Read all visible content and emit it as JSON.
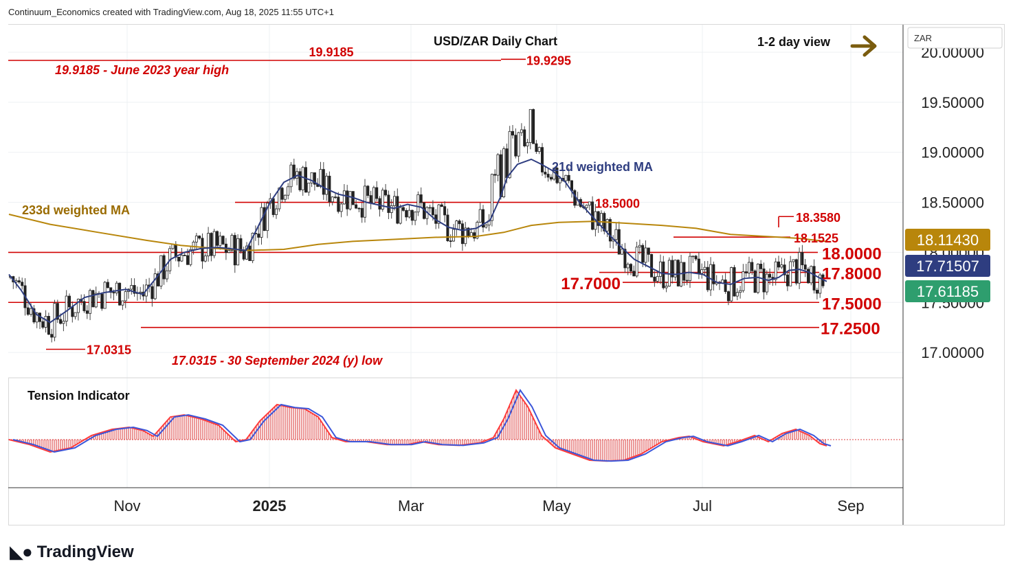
{
  "header": {
    "created_by": "Continuum_Economics created with TradingView.com, Aug 18, 2025 11:55 UTC+1"
  },
  "brand": {
    "logo_icon": "tradingview-logo-icon",
    "name": "TradingView"
  },
  "chart_data": {
    "type": "candlestick",
    "title": "USD/ZAR Daily Chart",
    "view_label": "1-2 day view",
    "view_arrow_icon": "arrow-right-icon",
    "currency_label": "ZAR",
    "y_axis": {
      "ylim": [
        16.78,
        20.15
      ],
      "ticks": [
        "17.00000",
        "17.50000",
        "18.00000",
        "18.50000",
        "19.00000",
        "19.50000",
        "20.00000"
      ]
    },
    "x_axis": {
      "ticks": [
        "Nov",
        "2025",
        "Mar",
        "May",
        "Jul",
        "Sep"
      ]
    },
    "price_badges": [
      {
        "label": "18.11430",
        "color": "#b8860b"
      },
      {
        "label": "17.71507",
        "color": "#2e3d80"
      },
      {
        "label": "17.61185",
        "color": "#2e9e6e"
      }
    ],
    "support_resistance": [
      {
        "value": 19.9295,
        "label": "19.9295"
      },
      {
        "value": 19.9185,
        "label": "19.9185"
      },
      {
        "value": 18.5,
        "label": "18.5000"
      },
      {
        "value": 18.358,
        "label": "18.3580"
      },
      {
        "value": 18.1525,
        "label": "18.1525"
      },
      {
        "value": 18.0,
        "label": "18.0000"
      },
      {
        "value": 17.8,
        "label": "17.8000"
      },
      {
        "value": 17.7,
        "label": "17.7000"
      },
      {
        "value": 17.5,
        "label": "17.5000"
      },
      {
        "value": 17.25,
        "label": "17.2500"
      },
      {
        "value": 17.0315,
        "label": "17.0315"
      }
    ],
    "annotations": [
      "19.9185 - June 2023 year high",
      "17.0315 - 30 September 2024 (y) low"
    ],
    "series": [
      {
        "name": "21d weighted MA",
        "color": "#2e3d80",
        "points": [
          [
            0,
            17.78
          ],
          [
            18,
            17.62
          ],
          [
            40,
            17.38
          ],
          [
            60,
            17.3
          ],
          [
            85,
            17.42
          ],
          [
            110,
            17.55
          ],
          [
            140,
            17.6
          ],
          [
            170,
            17.63
          ],
          [
            195,
            17.58
          ],
          [
            215,
            17.75
          ],
          [
            235,
            17.93
          ],
          [
            255,
            18.0
          ],
          [
            280,
            18.04
          ],
          [
            305,
            18.05
          ],
          [
            330,
            18.03
          ],
          [
            345,
            18.02
          ],
          [
            362,
            18.25
          ],
          [
            380,
            18.5
          ],
          [
            400,
            18.7
          ],
          [
            420,
            18.77
          ],
          [
            440,
            18.72
          ],
          [
            460,
            18.64
          ],
          [
            480,
            18.58
          ],
          [
            500,
            18.55
          ],
          [
            520,
            18.5
          ],
          [
            540,
            18.47
          ],
          [
            560,
            18.44
          ],
          [
            580,
            18.48
          ],
          [
            600,
            18.45
          ],
          [
            620,
            18.33
          ],
          [
            640,
            18.25
          ],
          [
            660,
            18.22
          ],
          [
            680,
            18.24
          ],
          [
            700,
            18.32
          ],
          [
            715,
            18.55
          ],
          [
            725,
            18.75
          ],
          [
            740,
            18.88
          ],
          [
            760,
            18.93
          ],
          [
            775,
            18.88
          ],
          [
            790,
            18.82
          ],
          [
            810,
            18.7
          ],
          [
            830,
            18.5
          ],
          [
            850,
            18.35
          ],
          [
            870,
            18.2
          ],
          [
            890,
            18.06
          ],
          [
            910,
            17.93
          ],
          [
            930,
            17.86
          ],
          [
            950,
            17.79
          ],
          [
            970,
            17.78
          ],
          [
            990,
            17.8
          ],
          [
            1010,
            17.78
          ],
          [
            1030,
            17.7
          ],
          [
            1050,
            17.68
          ],
          [
            1070,
            17.74
          ],
          [
            1090,
            17.75
          ],
          [
            1105,
            17.72
          ],
          [
            1120,
            17.75
          ],
          [
            1135,
            17.82
          ],
          [
            1150,
            17.83
          ],
          [
            1165,
            17.8
          ],
          [
            1178,
            17.75
          ],
          [
            1190,
            17.71
          ]
        ]
      },
      {
        "name": "233d weighted MA",
        "color": "#b8860b",
        "points": [
          [
            0,
            18.38
          ],
          [
            60,
            18.28
          ],
          [
            130,
            18.2
          ],
          [
            200,
            18.12
          ],
          [
            250,
            18.07
          ],
          [
            300,
            18.04
          ],
          [
            350,
            18.02
          ],
          [
            400,
            18.03
          ],
          [
            450,
            18.08
          ],
          [
            500,
            18.11
          ],
          [
            560,
            18.13
          ],
          [
            620,
            18.15
          ],
          [
            680,
            18.16
          ],
          [
            720,
            18.2
          ],
          [
            760,
            18.27
          ],
          [
            800,
            18.3
          ],
          [
            850,
            18.31
          ],
          [
            900,
            18.29
          ],
          [
            950,
            18.27
          ],
          [
            1000,
            18.24
          ],
          [
            1050,
            18.18
          ],
          [
            1100,
            18.16
          ],
          [
            1150,
            18.14
          ],
          [
            1188,
            18.11
          ]
        ]
      },
      {
        "name": "Tension Indicator",
        "points": [
          [
            0,
            0.0
          ],
          [
            30,
            -0.12
          ],
          [
            60,
            -0.3
          ],
          [
            90,
            -0.2
          ],
          [
            120,
            0.1
          ],
          [
            150,
            0.25
          ],
          [
            175,
            0.3
          ],
          [
            195,
            0.22
          ],
          [
            210,
            0.08
          ],
          [
            235,
            0.55
          ],
          [
            255,
            0.6
          ],
          [
            280,
            0.5
          ],
          [
            305,
            0.35
          ],
          [
            330,
            -0.05
          ],
          [
            345,
            0.0
          ],
          [
            365,
            0.45
          ],
          [
            390,
            0.85
          ],
          [
            410,
            0.78
          ],
          [
            430,
            0.75
          ],
          [
            450,
            0.55
          ],
          [
            470,
            0.05
          ],
          [
            490,
            -0.05
          ],
          [
            520,
            -0.05
          ],
          [
            550,
            -0.12
          ],
          [
            580,
            -0.12
          ],
          [
            600,
            -0.05
          ],
          [
            625,
            -0.12
          ],
          [
            655,
            -0.14
          ],
          [
            685,
            -0.08
          ],
          [
            705,
            0.05
          ],
          [
            720,
            0.5
          ],
          [
            738,
            1.2
          ],
          [
            755,
            0.8
          ],
          [
            775,
            0.1
          ],
          [
            795,
            -0.2
          ],
          [
            820,
            -0.35
          ],
          [
            845,
            -0.5
          ],
          [
            870,
            -0.52
          ],
          [
            895,
            -0.5
          ],
          [
            920,
            -0.35
          ],
          [
            950,
            -0.05
          ],
          [
            975,
            0.05
          ],
          [
            990,
            0.08
          ],
          [
            1010,
            -0.05
          ],
          [
            1040,
            -0.15
          ],
          [
            1060,
            -0.05
          ],
          [
            1085,
            0.1
          ],
          [
            1105,
            -0.05
          ],
          [
            1125,
            0.15
          ],
          [
            1145,
            0.25
          ],
          [
            1165,
            0.1
          ],
          [
            1180,
            -0.1
          ],
          [
            1190,
            -0.15
          ]
        ]
      }
    ],
    "indicator_label": "Tension Indicator"
  }
}
